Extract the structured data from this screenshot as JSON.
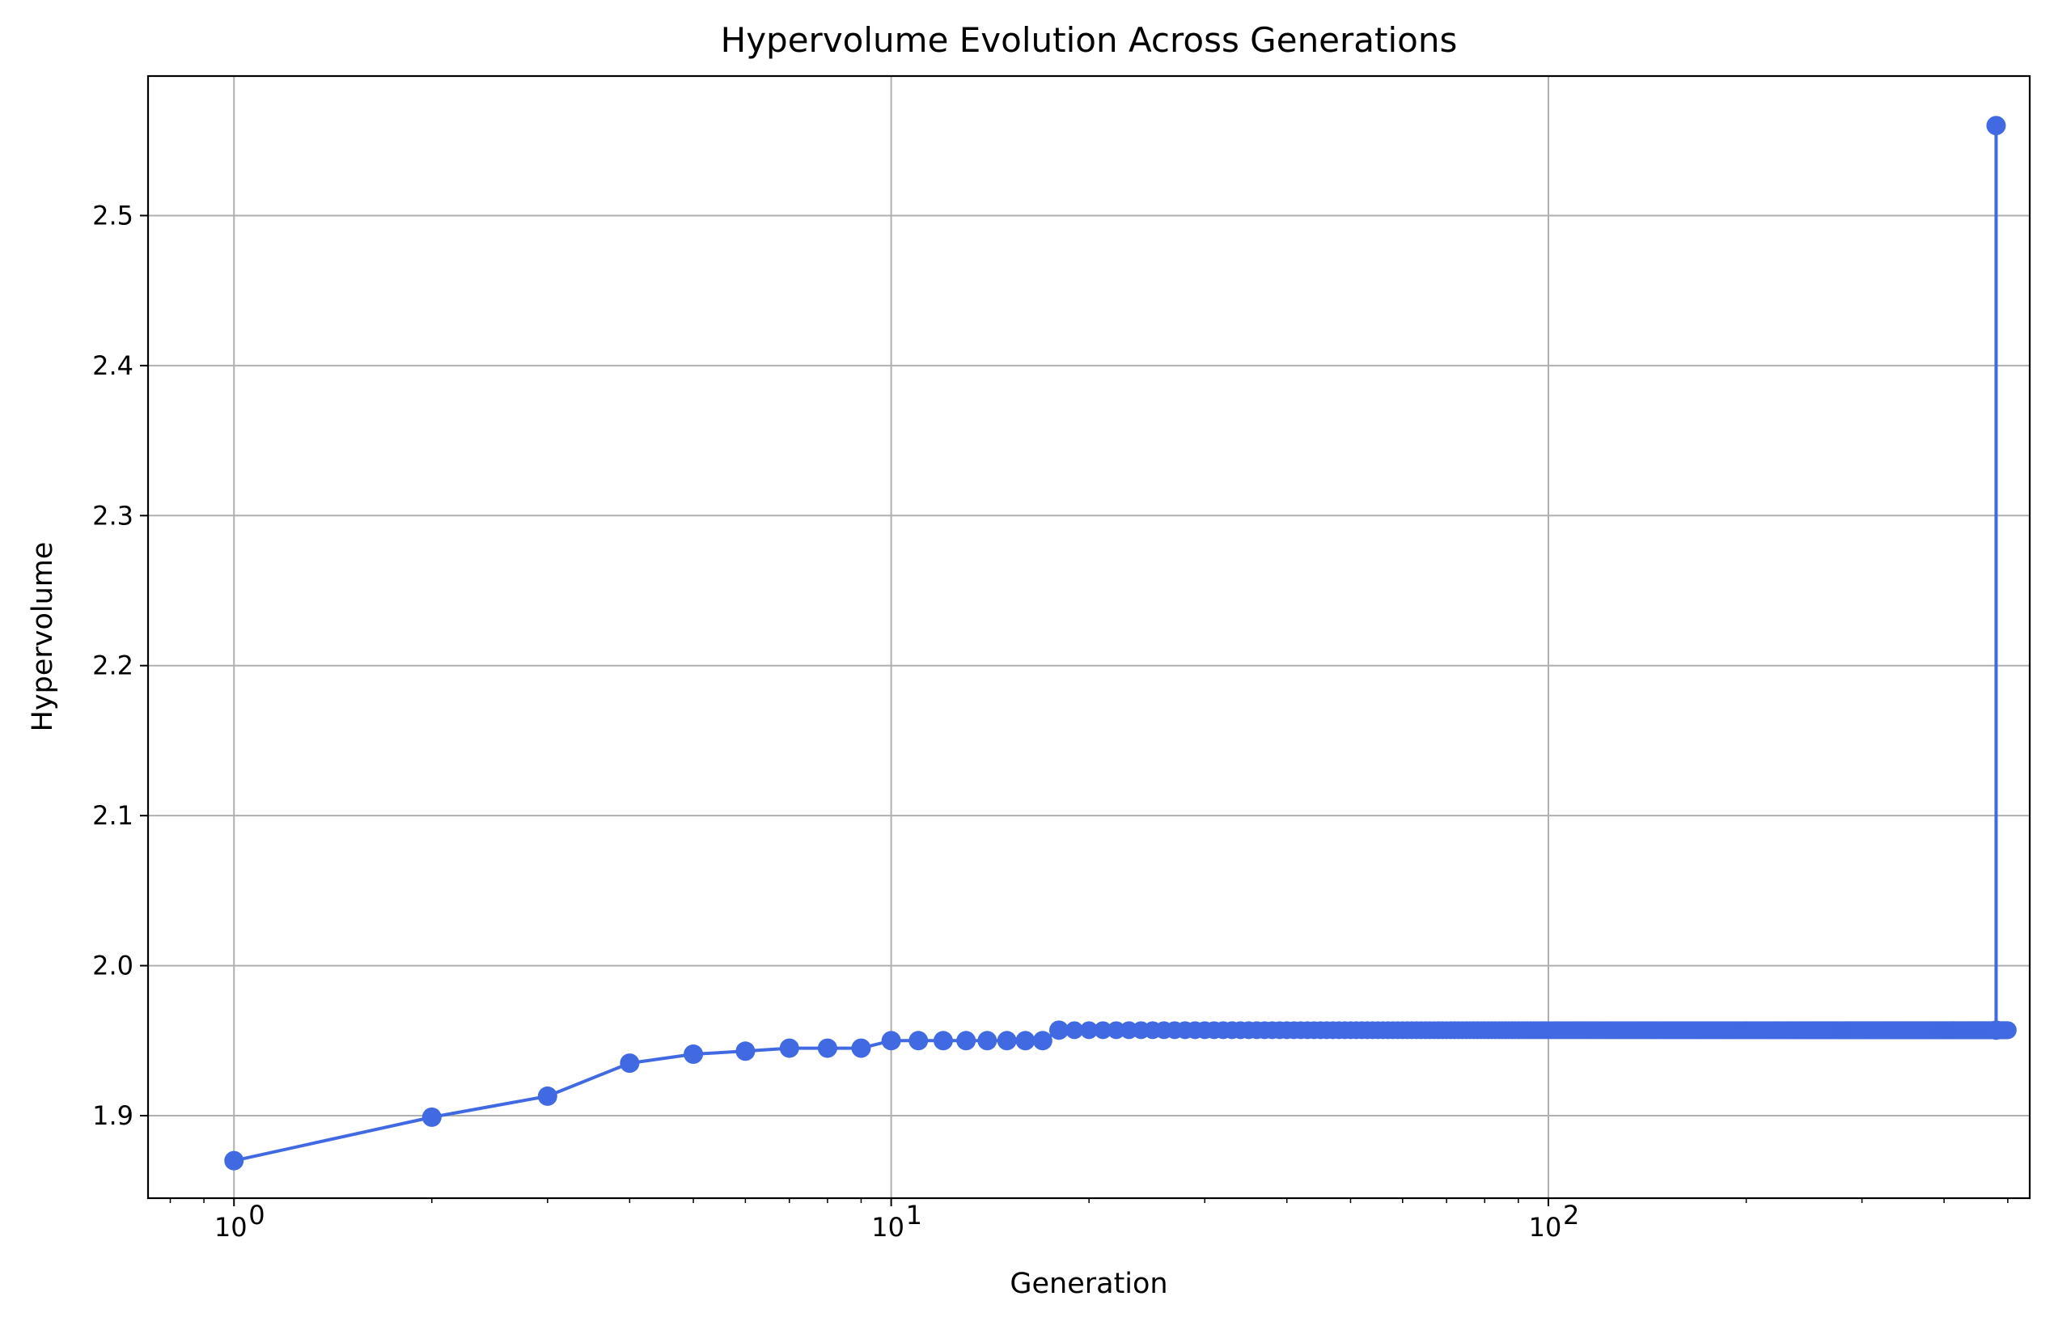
{
  "chart_data": {
    "type": "line",
    "title": "Hypervolume Evolution Across Generations",
    "xlabel": "Generation",
    "ylabel": "Hypervolume",
    "x_scale": "log",
    "xlim": [
      0.74,
      540
    ],
    "ylim": [
      1.845,
      2.593
    ],
    "x_ticks": [
      {
        "value": 1,
        "base": "10",
        "exp": "0"
      },
      {
        "value": 10,
        "base": "10",
        "exp": "1"
      },
      {
        "value": 100,
        "base": "10",
        "exp": "2"
      }
    ],
    "y_ticks": [
      {
        "value": 1.9,
        "label": "1.9"
      },
      {
        "value": 2.0,
        "label": "2.0"
      },
      {
        "value": 2.1,
        "label": "2.1"
      },
      {
        "value": 2.2,
        "label": "2.2"
      },
      {
        "value": 2.3,
        "label": "2.3"
      },
      {
        "value": 2.4,
        "label": "2.4"
      },
      {
        "value": 2.5,
        "label": "2.5"
      }
    ],
    "grid": true,
    "color": "#4169e1",
    "series": [
      {
        "x": [
          1,
          2,
          3,
          4,
          5,
          6,
          7,
          8,
          9,
          10,
          11,
          12,
          13,
          14,
          15,
          16,
          17,
          18,
          480,
          480
        ],
        "y": [
          1.87,
          1.899,
          1.913,
          1.935,
          1.941,
          1.943,
          1.945,
          1.945,
          1.945,
          1.95,
          1.95,
          1.95,
          1.95,
          1.95,
          1.95,
          1.95,
          1.95,
          1.957,
          1.957,
          2.56
        ],
        "plateau": {
          "from": 18,
          "to": 500,
          "y": 1.957
        }
      }
    ]
  }
}
